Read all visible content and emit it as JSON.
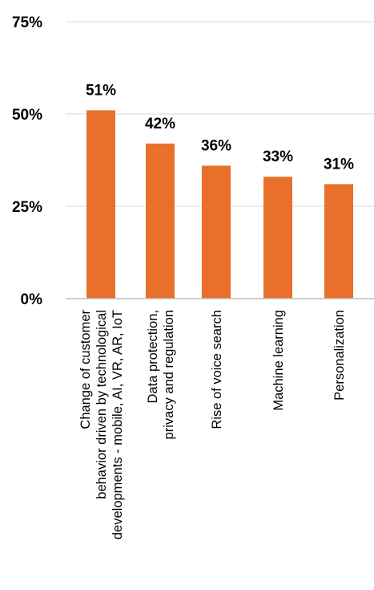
{
  "chart_data": {
    "type": "bar",
    "categories": [
      [
        "Change of customer",
        "behavior driven by technological",
        "developments - mobile, AI, VR, AR, IoT"
      ],
      [
        "Data protection,",
        "privacy and regulation"
      ],
      [
        "Rise of voice search"
      ],
      [
        "Machine learning"
      ],
      [
        "Personalization"
      ]
    ],
    "values": [
      51,
      42,
      36,
      33,
      31
    ],
    "data_labels": [
      "51%",
      "42%",
      "36%",
      "33%",
      "31%"
    ],
    "ylim": [
      0,
      75
    ],
    "yticks": [
      0,
      25,
      50,
      75
    ],
    "ytick_labels": [
      "0%",
      "25%",
      "50%",
      "75%"
    ],
    "grid": true,
    "legend": "none",
    "colors": {
      "bar": "#E8702A",
      "grid": "#D9D9D9",
      "axis": "#BFBFBF",
      "text": "#000000"
    }
  }
}
